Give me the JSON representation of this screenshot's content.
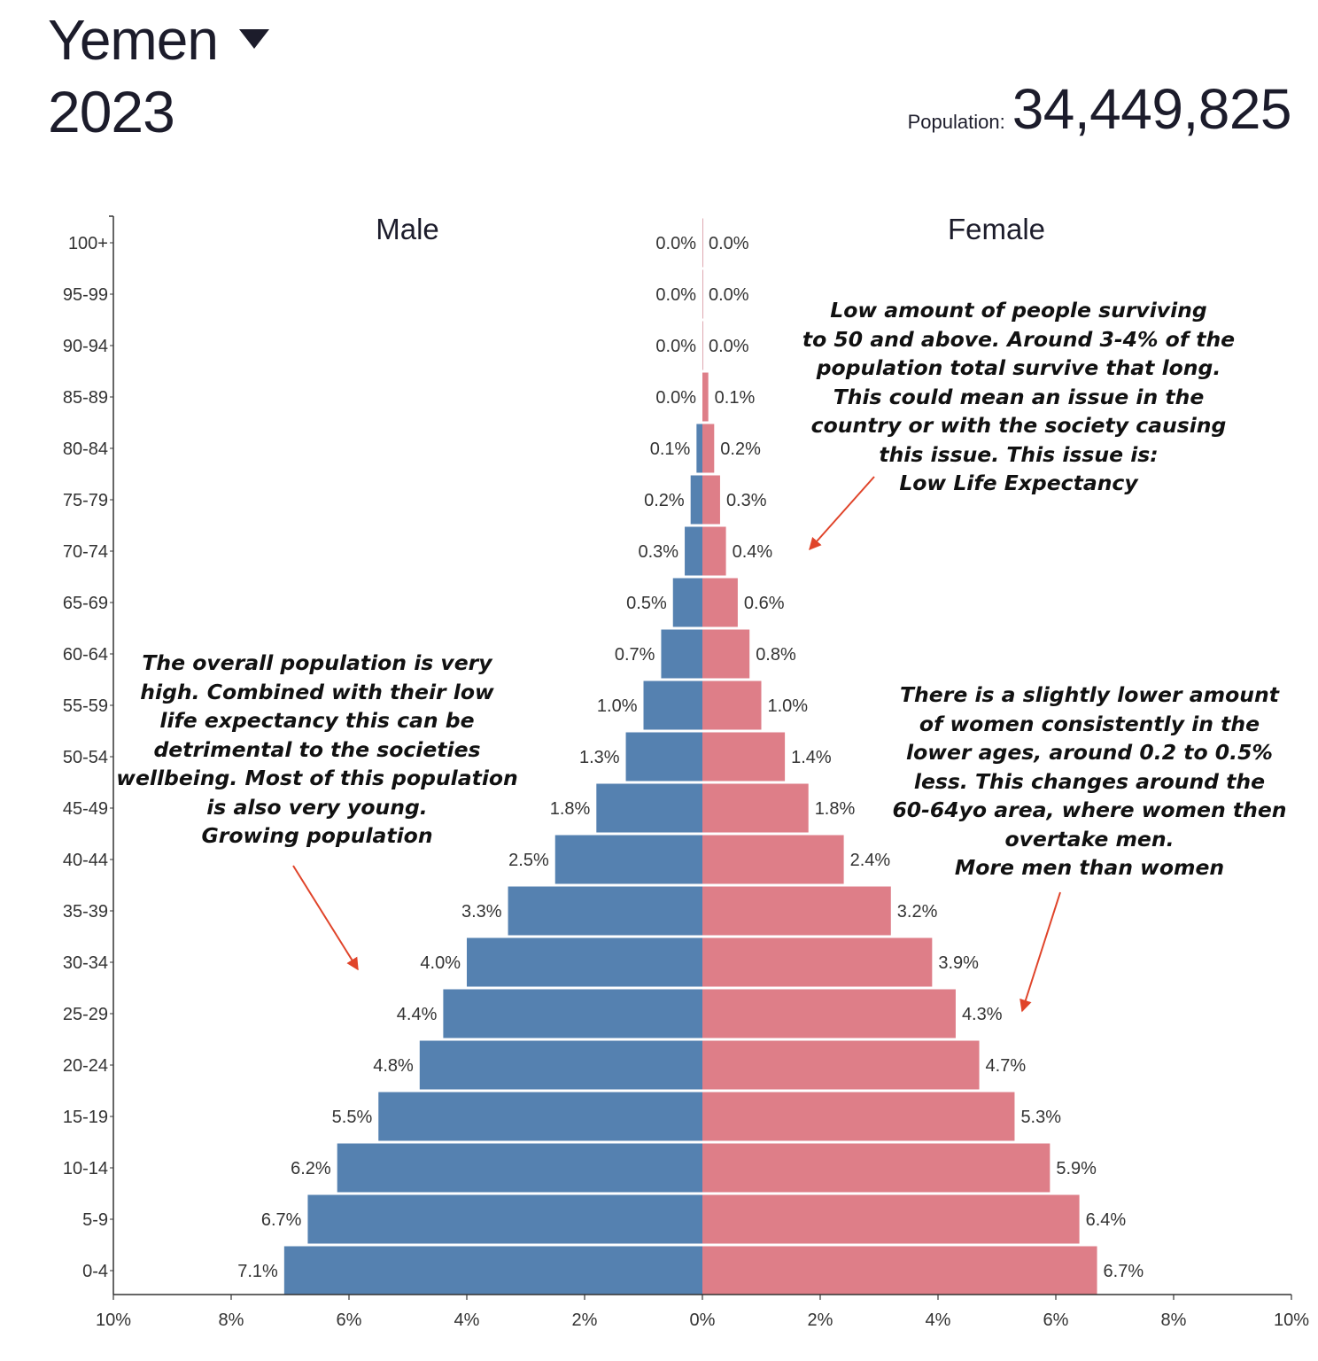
{
  "header": {
    "country": "Yemen",
    "year": "2023",
    "population_label": "Population:",
    "population_value": "34,449,825"
  },
  "colors": {
    "male": "#5581b0",
    "female": "#de7e88",
    "arrow": "#e0442a",
    "text": "#1c1c2b"
  },
  "chart_data": {
    "type": "bar",
    "orientation": "horizontal-pyramid",
    "series": [
      {
        "name": "Male",
        "side": "left",
        "values": [
          0.0,
          0.0,
          0.0,
          0.0,
          0.1,
          0.2,
          0.3,
          0.5,
          0.7,
          1.0,
          1.3,
          1.8,
          2.5,
          3.3,
          4.0,
          4.4,
          4.8,
          5.5,
          6.2,
          6.7,
          7.1
        ],
        "labels": [
          "0.0%",
          "0.0%",
          "0.0%",
          "0.0%",
          "0.1%",
          "0.2%",
          "0.3%",
          "0.5%",
          "0.7%",
          "1.0%",
          "1.3%",
          "1.8%",
          "2.5%",
          "3.3%",
          "4.0%",
          "4.4%",
          "4.8%",
          "5.5%",
          "6.2%",
          "6.7%",
          "7.1%"
        ]
      },
      {
        "name": "Female",
        "side": "right",
        "values": [
          0.0,
          0.0,
          0.0,
          0.1,
          0.2,
          0.3,
          0.4,
          0.6,
          0.8,
          1.0,
          1.4,
          1.8,
          2.4,
          3.2,
          3.9,
          4.3,
          4.7,
          5.3,
          5.9,
          6.4,
          6.7
        ],
        "labels": [
          "0.0%",
          "0.0%",
          "0.0%",
          "0.1%",
          "0.2%",
          "0.3%",
          "0.4%",
          "0.6%",
          "0.8%",
          "1.0%",
          "1.4%",
          "1.8%",
          "2.4%",
          "3.2%",
          "3.9%",
          "4.3%",
          "4.7%",
          "5.3%",
          "5.9%",
          "6.4%",
          "6.7%"
        ]
      }
    ],
    "categories": [
      "100+",
      "95-99",
      "90-94",
      "85-89",
      "80-84",
      "75-79",
      "70-74",
      "65-69",
      "60-64",
      "55-59",
      "50-54",
      "45-49",
      "40-44",
      "35-39",
      "30-34",
      "25-29",
      "20-24",
      "15-19",
      "10-14",
      "5-9",
      "0-4"
    ],
    "x_ticks": [
      "10%",
      "8%",
      "6%",
      "4%",
      "2%",
      "0%",
      "2%",
      "4%",
      "6%",
      "8%",
      "10%"
    ],
    "xlim": [
      -10,
      10
    ],
    "grid": false
  },
  "annotations": [
    {
      "id": "note-life-expectancy",
      "text": "Low amount of people surviving\nto 50 and above. Around 3-4% of the\npopulation total survive that long.\nThis could mean an issue in the\ncountry or with the society causing\nthis issue. This issue is:\nLow Life Expectancy"
    },
    {
      "id": "note-population",
      "text": "The overall population is very\nhigh. Combined with their low\nlife expectancy this can be\ndetrimental to the societies\nwellbeing. Most of this population\nis also very young.\nGrowing population"
    },
    {
      "id": "note-gender",
      "text": "There is a slightly lower amount\nof women consistently in the\nlower ages, around 0.2 to 0.5%\nless. This changes around the\n60-64yo area, where women then\novertake men.\nMore men than women"
    }
  ]
}
